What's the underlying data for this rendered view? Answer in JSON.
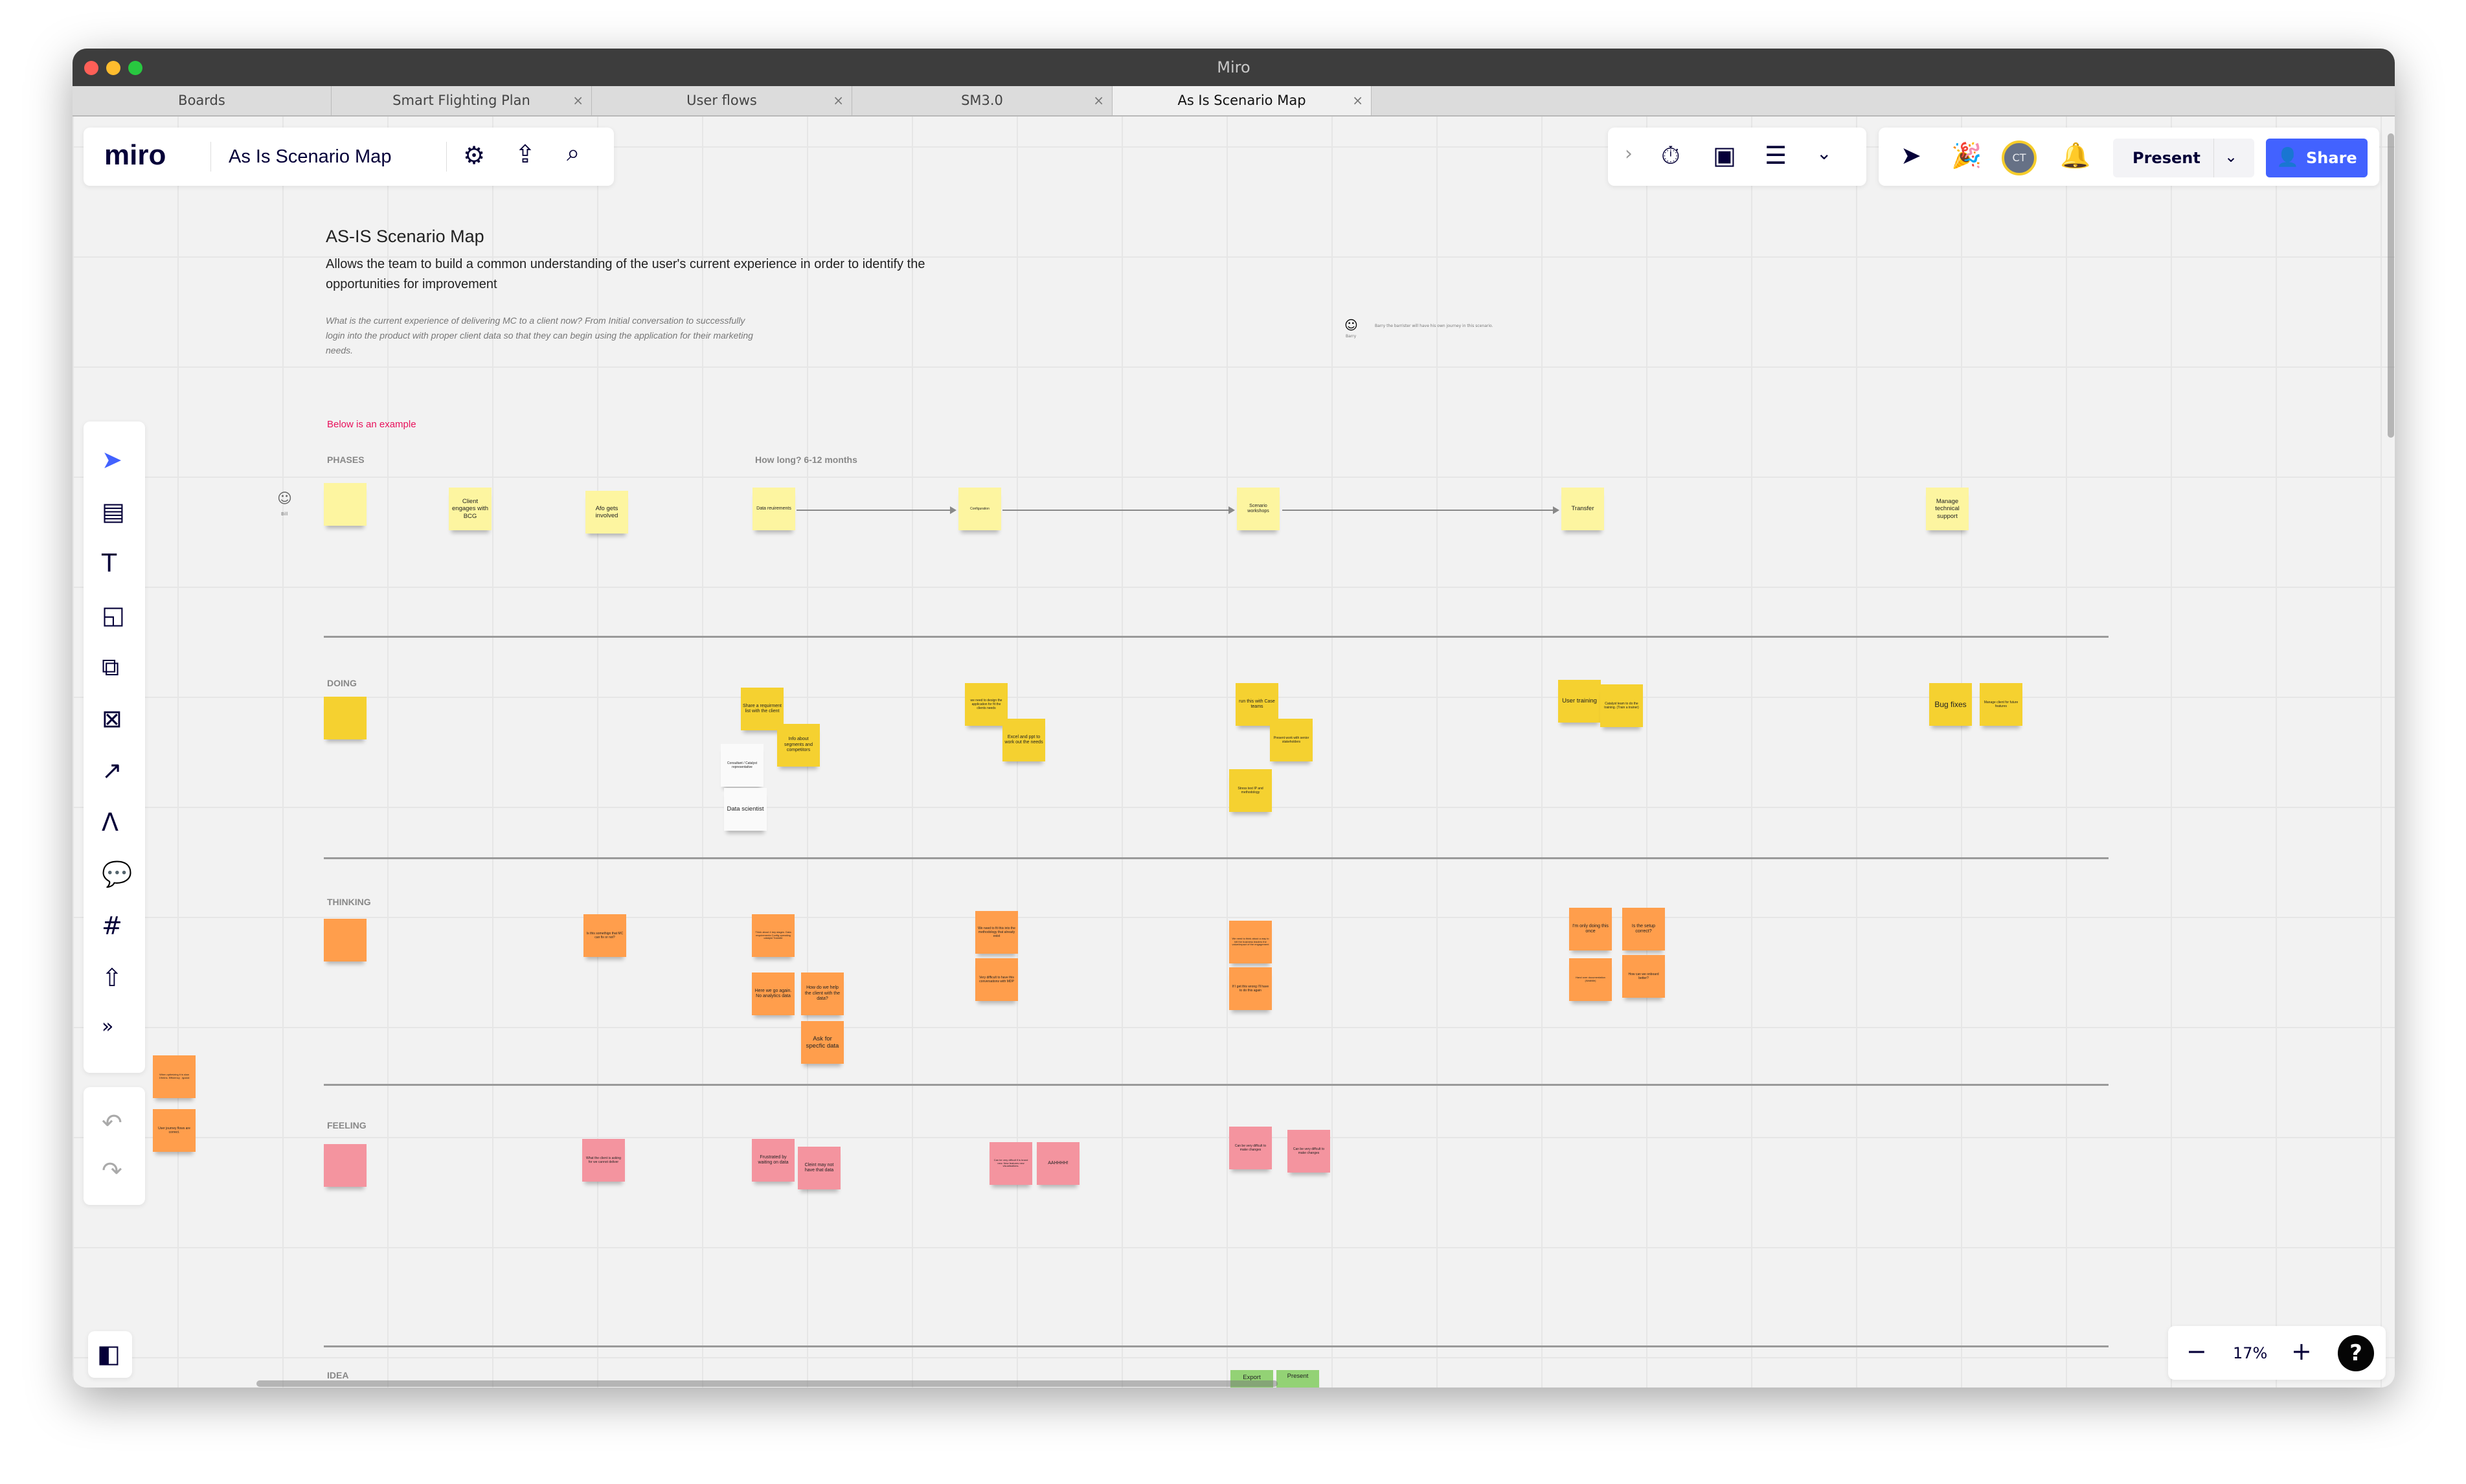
{
  "window": {
    "title": "Miro"
  },
  "tabs": [
    {
      "label": "Boards"
    },
    {
      "label": "Smart Flighting Plan"
    },
    {
      "label": "User flows"
    },
    {
      "label": "SM3.0"
    },
    {
      "label": "As Is Scenario Map",
      "active": true
    }
  ],
  "header": {
    "logo": "miro",
    "board_name": "As Is Scenario Map",
    "present_label": "Present",
    "share_label": "Share",
    "avatar_initials": "CT",
    "accent": "#4262ff"
  },
  "zoom": {
    "level": "17%"
  },
  "board": {
    "title": "AS-IS Scenario Map",
    "description": "Allows the team to build a common understanding of the user's current experience in order to identify the opportunities for improvement",
    "question": "What is the current experience of delivering MC to a client now? From Initial conversation to successfully login into the product with proper client data so that they can begin using the application for their marketing needs.",
    "example_note": "Below is an example",
    "duration": "How long? 6-12 months",
    "persona_bill": "Bill",
    "persona_barry": "Barry",
    "barry_note": "Barry the barrister will have his own journey in this scenario.",
    "lanes": {
      "phases": "PHASES",
      "doing": "DOING",
      "thinking": "THINKING",
      "feeling": "FEELING",
      "idea": "IDEA"
    }
  },
  "stickies": {
    "phases": [
      "",
      "Client engages with BCG",
      "Afo gets involved",
      "Data reuirements",
      "Configuration",
      "Scenario workshops",
      "Transfer",
      "Manage technical support"
    ],
    "doing": [
      "",
      "Share a requirment list with the client",
      "Info about segments and competitors",
      "Consultant / Catalyst representative",
      "Data scientist",
      "we need to design the application for fit the clients needs",
      "Excel and ppt to work out the needs",
      "run this with Case teams",
      "Present work with senior stakeholders",
      "Stress test IP and methodology",
      "User training",
      "Catalyst team to do the training. (Train a trainer)",
      "Bug fixes",
      "Manage client for future features"
    ],
    "thinking": [
      "",
      "Is this somethign that MC can fix or not?",
      "Think about 4 key stages. Data requirements Config operating catalyst Transfer",
      "Here we go again. No analytics data",
      "How do we help the client with the data?",
      "Ask for specfic data",
      "We need to fit this into the methodology that already exist",
      "Very difficult to have this conversations with MDP",
      "We need to think about a way to tell the business leaders the value/impact of the engagement",
      "If I get this wrong I'll have to do this again",
      "I'm only doing this once",
      "Is the setup correct?",
      "Hand over documentation (WalkMe)",
      "How can we onboard better?",
      "When optimizing it is slow 19mins. Efficiency , lgocial",
      "User journey flows are correct."
    ],
    "feeling": [
      "",
      "What the client is asking for we cannot deliver",
      "Frustrated by waiting on data",
      "Cleint may not have that data",
      "Can be very diffcult if is brand new. New features new visualisations.",
      "AAHHHH!",
      "Can be very diffcult to make changes",
      "Can be very diffcult to make changes"
    ],
    "idea": [
      "Export",
      "Present"
    ]
  }
}
